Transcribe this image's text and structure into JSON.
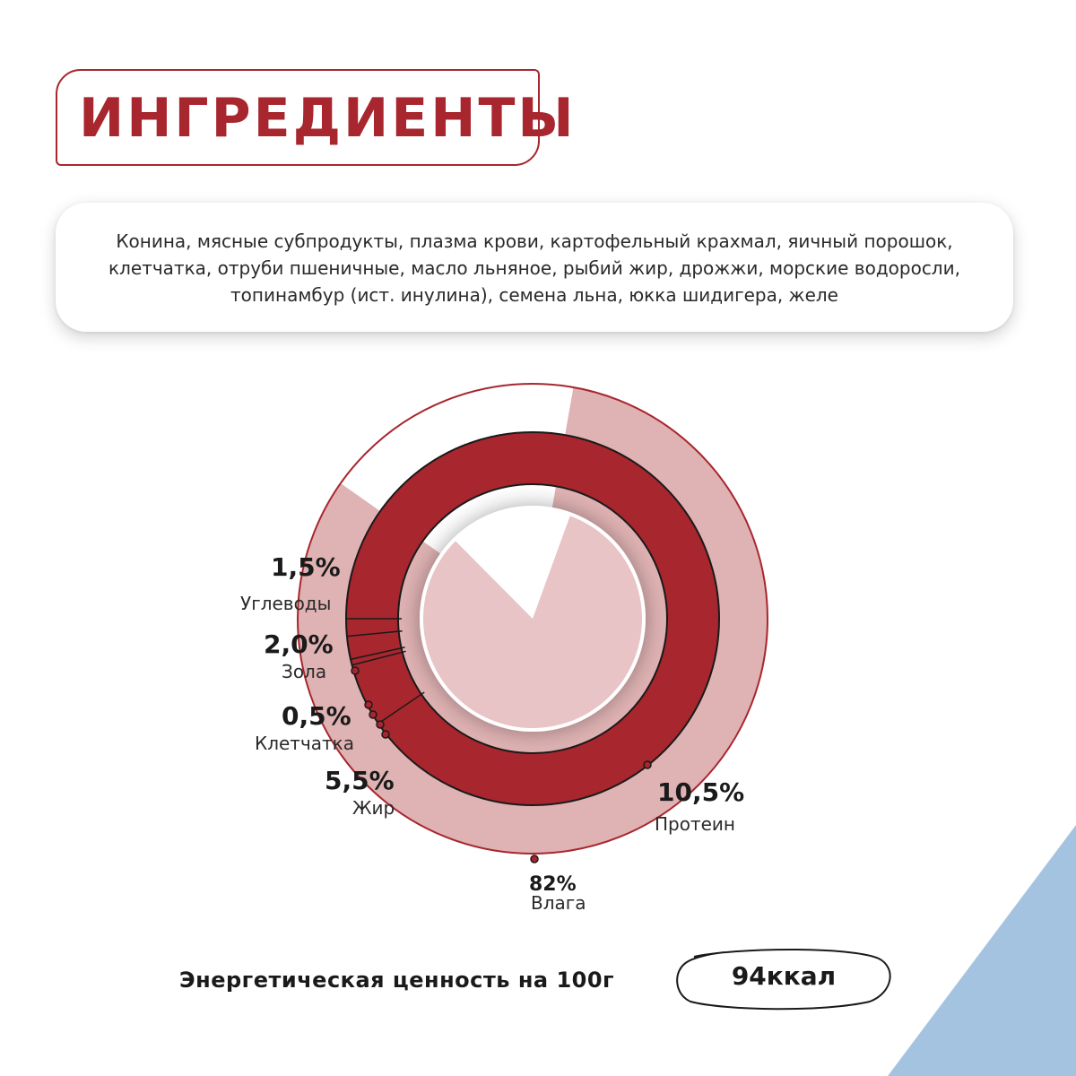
{
  "header": {
    "title": "ИНГРЕДИЕНТЫ"
  },
  "ingredients": {
    "lines": [
      "Конина, мясные субпродукты, плазма крови, картофельный крахмал, яичный порошок,",
      "клетчатка, отруби пшеничные,  масло льняное, рыбий жир, дрожжи, морские водоросли,",
      "топинамбур (ист. инулина), семена льна, юкка шидигера, желе"
    ]
  },
  "chart_data": {
    "type": "pie",
    "title": "",
    "series": [
      {
        "name": "Влага",
        "value": 82,
        "label": "82%",
        "text": "Влага"
      },
      {
        "name": "Протеин",
        "value": 10.5,
        "label": "10,5%",
        "text": "Протеин"
      },
      {
        "name": "Жир",
        "value": 5.5,
        "label": "5,5%",
        "text": "Жир"
      },
      {
        "name": "Клетчатка",
        "value": 0.5,
        "label": "0,5%",
        "text": "Клетчатка"
      },
      {
        "name": "Зола",
        "value": 2.0,
        "label": "2,0%",
        "text": "Зола"
      },
      {
        "name": "Углеводы",
        "value": 1.5,
        "label": "1,5%",
        "text": "Углеводы"
      }
    ],
    "colors": {
      "outer_fill": "#dfb2b3",
      "ring_fill": "#a8262e",
      "inner_fill": "#e8c4c6",
      "outline": "#a8262e",
      "divider": "#1a1a1a"
    }
  },
  "energy": {
    "label": "Энергетическая ценность на 100г",
    "value": "94ккал"
  },
  "decor": {
    "corner_color": "#a4c3e1"
  }
}
